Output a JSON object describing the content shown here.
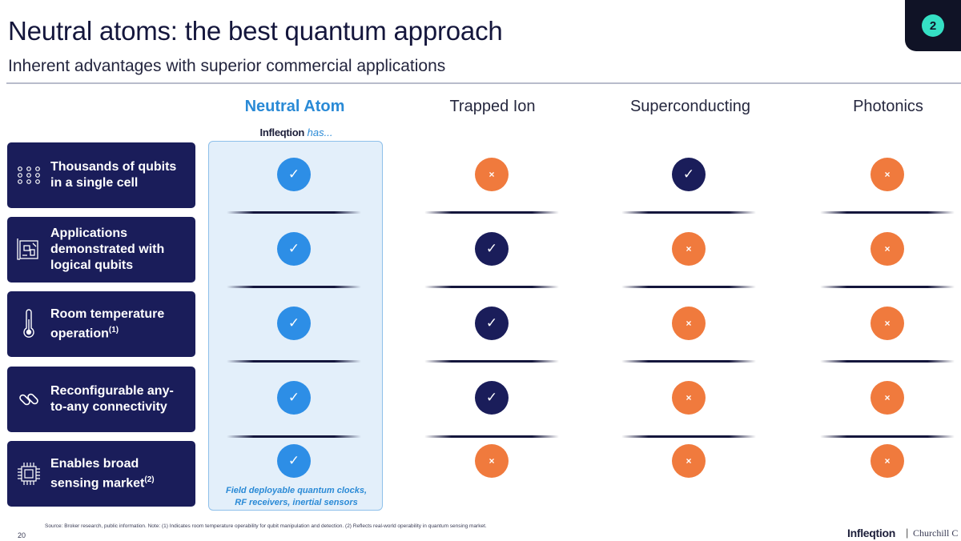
{
  "header": {
    "title": "Neutral atoms: the best quantum approach",
    "subtitle": "Inherent advantages with superior commercial applications",
    "badge": "2"
  },
  "columns": [
    "Neutral Atom",
    "Trapped Ion",
    "Superconducting",
    "Photonics"
  ],
  "neutral_atom": {
    "brand": "Infleqtion",
    "has": "has...",
    "note_line1": "Field deployable quantum clocks,",
    "note_line2": "RF receivers, inertial sensors"
  },
  "rows": [
    {
      "label_line1": "Thousands of qubits",
      "label_line2": "in a single cell",
      "label_line3": "",
      "sup": "",
      "icon": "dots-grid-icon",
      "marks": [
        "check",
        "cross",
        "check",
        "cross"
      ]
    },
    {
      "label_line1": "Applications",
      "label_line2": "demonstrated with",
      "label_line3": "logical qubits",
      "sup": "",
      "icon": "blueprint-icon",
      "marks": [
        "check",
        "check",
        "cross",
        "cross"
      ]
    },
    {
      "label_line1": "Room temperature",
      "label_line2": "operation",
      "label_line3": "",
      "sup": "(1)",
      "icon": "thermometer-icon",
      "marks": [
        "check",
        "check",
        "cross",
        "cross"
      ]
    },
    {
      "label_line1": "Reconfigurable any-",
      "label_line2": "to-any connectivity",
      "label_line3": "",
      "sup": "",
      "icon": "link-icon",
      "marks": [
        "check",
        "check",
        "cross",
        "cross"
      ]
    },
    {
      "label_line1": "Enables broad",
      "label_line2": "sensing market",
      "label_line3": "",
      "sup": "(2)",
      "icon": "chip-icon",
      "marks": [
        "check",
        "cross",
        "cross",
        "cross"
      ]
    }
  ],
  "glyphs": {
    "check": "✓",
    "cross": "×"
  },
  "footer": {
    "page": "20",
    "source": "Source: Broker research, public information. Note: (1) Indicates room temperature operability for qubit manipulation and detection. (2) Reflects real-world operability in quantum sensing market.",
    "logo": "Infleqtion",
    "logo_sep": "|",
    "partner": "Churchill C"
  },
  "colors": {
    "navy": "#1a1d5a",
    "blue": "#2d8ee6",
    "orange": "#f07a3d",
    "teal": "#35e0c4"
  }
}
